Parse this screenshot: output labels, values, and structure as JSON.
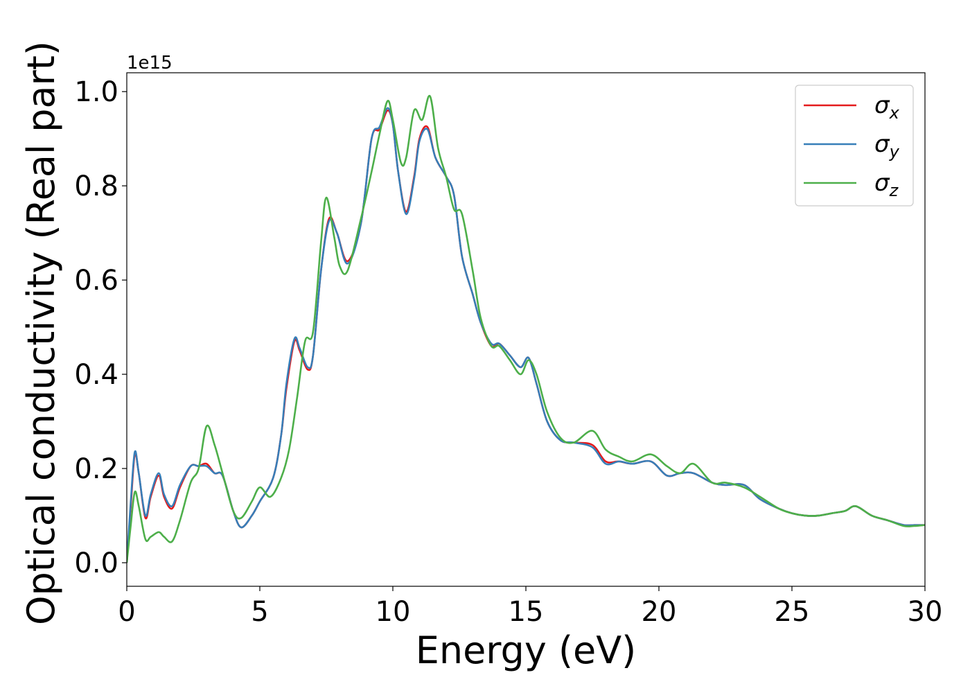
{
  "chart_data": {
    "type": "line",
    "xlabel": "Energy (eV)",
    "ylabel": "Optical conductivity (Real part)",
    "y_offset_text": "1e15",
    "xlim": [
      0,
      30
    ],
    "ylim": [
      -0.05,
      1.04
    ],
    "y_scale_factor": 1000000000000000.0,
    "x_ticks": [
      0,
      5,
      10,
      15,
      20,
      25,
      30
    ],
    "x_tick_labels": [
      "0",
      "5",
      "10",
      "15",
      "20",
      "25",
      "30"
    ],
    "y_ticks": [
      0.0,
      0.2,
      0.4,
      0.6,
      0.8,
      1.0
    ],
    "y_tick_labels": [
      "0.0",
      "0.2",
      "0.4",
      "0.6",
      "0.8",
      "1.0"
    ],
    "grid": false,
    "legend_position": "top-right",
    "series": [
      {
        "name": "σ",
        "subscript": "x",
        "color": "#e41a1c",
        "x": [
          0,
          0.15,
          0.3,
          0.45,
          0.7,
          0.9,
          1.2,
          1.4,
          1.7,
          2.0,
          2.4,
          2.7,
          3.0,
          3.3,
          3.6,
          4.0,
          4.3,
          4.7,
          5.0,
          5.5,
          5.8,
          6.0,
          6.3,
          6.5,
          6.8,
          7.0,
          7.3,
          7.6,
          7.9,
          8.3,
          8.8,
          9.2,
          9.5,
          9.8,
          10.0,
          10.2,
          10.5,
          10.8,
          11.0,
          11.3,
          11.6,
          12.0,
          12.3,
          12.6,
          13.0,
          13.3,
          13.7,
          14.0,
          14.4,
          14.8,
          15.1,
          15.4,
          15.8,
          16.3,
          16.8,
          17.5,
          18.0,
          18.5,
          19.0,
          19.7,
          20.3,
          20.8,
          21.3,
          22.0,
          22.5,
          23.2,
          23.8,
          24.5,
          25.0,
          25.5,
          26.0,
          26.5,
          27.0,
          27.4,
          28.0,
          28.6,
          29.2,
          29.6,
          30.0
        ],
        "y": [
          0.0,
          0.12,
          0.23,
          0.19,
          0.095,
          0.14,
          0.185,
          0.14,
          0.115,
          0.16,
          0.205,
          0.205,
          0.21,
          0.19,
          0.185,
          0.11,
          0.075,
          0.1,
          0.13,
          0.18,
          0.27,
          0.37,
          0.47,
          0.45,
          0.41,
          0.44,
          0.62,
          0.73,
          0.7,
          0.64,
          0.72,
          0.9,
          0.92,
          0.96,
          0.93,
          0.83,
          0.745,
          0.82,
          0.9,
          0.925,
          0.86,
          0.82,
          0.78,
          0.65,
          0.57,
          0.51,
          0.46,
          0.465,
          0.44,
          0.415,
          0.435,
          0.38,
          0.3,
          0.26,
          0.255,
          0.25,
          0.215,
          0.215,
          0.21,
          0.215,
          0.185,
          0.19,
          0.19,
          0.17,
          0.165,
          0.165,
          0.135,
          0.115,
          0.105,
          0.1,
          0.1,
          0.105,
          0.11,
          0.12,
          0.1,
          0.09,
          0.08,
          0.08,
          0.08
        ]
      },
      {
        "name": "σ",
        "subscript": "y",
        "color": "#377eb8",
        "x": [
          0,
          0.15,
          0.3,
          0.45,
          0.7,
          0.9,
          1.2,
          1.4,
          1.7,
          2.0,
          2.4,
          2.7,
          3.0,
          3.3,
          3.6,
          4.0,
          4.3,
          4.7,
          5.0,
          5.5,
          5.8,
          6.0,
          6.3,
          6.5,
          6.8,
          7.0,
          7.3,
          7.6,
          7.9,
          8.3,
          8.8,
          9.2,
          9.5,
          9.8,
          10.0,
          10.2,
          10.5,
          10.8,
          11.0,
          11.3,
          11.6,
          12.0,
          12.3,
          12.6,
          13.0,
          13.3,
          13.7,
          14.0,
          14.4,
          14.8,
          15.1,
          15.4,
          15.8,
          16.3,
          16.8,
          17.5,
          18.0,
          18.5,
          19.0,
          19.7,
          20.3,
          20.8,
          21.3,
          22.0,
          22.5,
          23.2,
          23.8,
          24.5,
          25.0,
          25.5,
          26.0,
          26.5,
          27.0,
          27.4,
          28.0,
          28.6,
          29.2,
          29.6,
          30.0
        ],
        "y": [
          0.0,
          0.13,
          0.235,
          0.19,
          0.1,
          0.145,
          0.19,
          0.145,
          0.12,
          0.165,
          0.205,
          0.205,
          0.205,
          0.19,
          0.185,
          0.11,
          0.075,
          0.1,
          0.13,
          0.18,
          0.27,
          0.38,
          0.475,
          0.455,
          0.415,
          0.44,
          0.62,
          0.725,
          0.7,
          0.635,
          0.72,
          0.9,
          0.925,
          0.965,
          0.93,
          0.83,
          0.74,
          0.815,
          0.895,
          0.92,
          0.86,
          0.82,
          0.78,
          0.65,
          0.57,
          0.51,
          0.465,
          0.465,
          0.44,
          0.415,
          0.435,
          0.38,
          0.3,
          0.26,
          0.255,
          0.245,
          0.21,
          0.215,
          0.21,
          0.215,
          0.185,
          0.19,
          0.19,
          0.17,
          0.165,
          0.165,
          0.135,
          0.115,
          0.105,
          0.1,
          0.1,
          0.105,
          0.11,
          0.12,
          0.1,
          0.09,
          0.08,
          0.08,
          0.08
        ]
      },
      {
        "name": "σ",
        "subscript": "z",
        "color": "#4daf4a",
        "x": [
          0,
          0.15,
          0.3,
          0.45,
          0.7,
          0.9,
          1.2,
          1.4,
          1.7,
          2.0,
          2.4,
          2.7,
          3.0,
          3.3,
          3.6,
          4.0,
          4.3,
          4.7,
          5.0,
          5.4,
          5.8,
          6.1,
          6.4,
          6.7,
          7.0,
          7.3,
          7.5,
          7.8,
          8.0,
          8.3,
          8.8,
          9.2,
          9.5,
          9.8,
          10.0,
          10.3,
          10.5,
          10.8,
          11.1,
          11.4,
          11.7,
          12.0,
          12.3,
          12.6,
          13.0,
          13.3,
          13.7,
          14.0,
          14.4,
          14.8,
          15.1,
          15.4,
          15.8,
          16.3,
          16.8,
          17.5,
          18.0,
          18.5,
          19.0,
          19.7,
          20.3,
          20.8,
          21.3,
          22.0,
          22.5,
          23.2,
          23.8,
          24.5,
          25.0,
          25.5,
          26.0,
          26.5,
          27.0,
          27.4,
          28.0,
          28.6,
          29.2,
          29.6,
          30.0
        ],
        "y": [
          0.0,
          0.08,
          0.15,
          0.12,
          0.05,
          0.055,
          0.065,
          0.055,
          0.045,
          0.09,
          0.17,
          0.2,
          0.29,
          0.25,
          0.19,
          0.11,
          0.095,
          0.13,
          0.16,
          0.14,
          0.18,
          0.24,
          0.35,
          0.47,
          0.49,
          0.68,
          0.775,
          0.69,
          0.63,
          0.62,
          0.73,
          0.83,
          0.91,
          0.98,
          0.94,
          0.85,
          0.86,
          0.96,
          0.94,
          0.99,
          0.88,
          0.82,
          0.75,
          0.74,
          0.62,
          0.52,
          0.46,
          0.46,
          0.43,
          0.4,
          0.43,
          0.4,
          0.32,
          0.265,
          0.255,
          0.28,
          0.24,
          0.225,
          0.215,
          0.23,
          0.205,
          0.19,
          0.21,
          0.17,
          0.17,
          0.16,
          0.14,
          0.115,
          0.105,
          0.1,
          0.1,
          0.105,
          0.11,
          0.12,
          0.1,
          0.09,
          0.078,
          0.078,
          0.08
        ]
      }
    ]
  }
}
